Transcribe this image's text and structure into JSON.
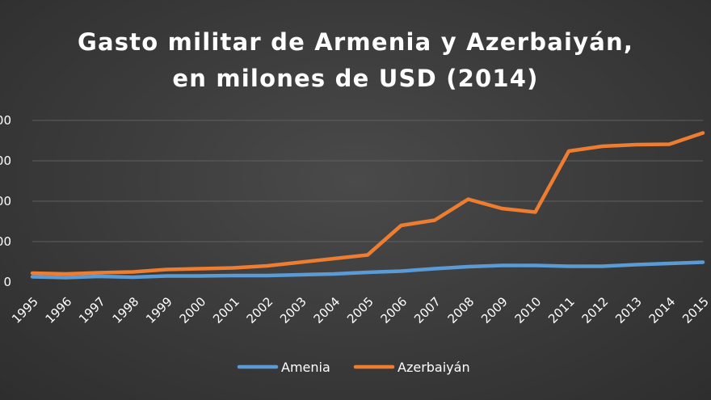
{
  "chart_data": {
    "type": "line",
    "title": [
      "Gasto militar de Armenia y Azerbaiyán,",
      "en milones de USD (2014)"
    ],
    "x": [
      "1995",
      "1996",
      "1997",
      "1998",
      "1999",
      "2000",
      "2001",
      "2002",
      "2003",
      "2004",
      "2005",
      "2006",
      "2007",
      "2008",
      "2009",
      "2010",
      "2011",
      "2012",
      "2013",
      "2014",
      "2015"
    ],
    "y_ticks": [
      "0",
      "00",
      "00",
      "00",
      "00"
    ],
    "series": [
      {
        "name": "Amenia",
        "color": "#5b9bd5",
        "values": [
          130,
          110,
          140,
          120,
          150,
          150,
          160,
          160,
          180,
          200,
          240,
          270,
          330,
          380,
          410,
          410,
          390,
          390,
          430,
          460,
          490
        ]
      },
      {
        "name": "Azerbaiyán",
        "color": "#ed7d31",
        "values": [
          220,
          200,
          230,
          250,
          310,
          330,
          350,
          400,
          490,
          580,
          670,
          1400,
          1530,
          2050,
          1820,
          1730,
          3240,
          3360,
          3400,
          3410,
          3690
        ]
      }
    ],
    "ylim": [
      0,
      4000
    ],
    "grid": true,
    "legend": "bottom"
  }
}
